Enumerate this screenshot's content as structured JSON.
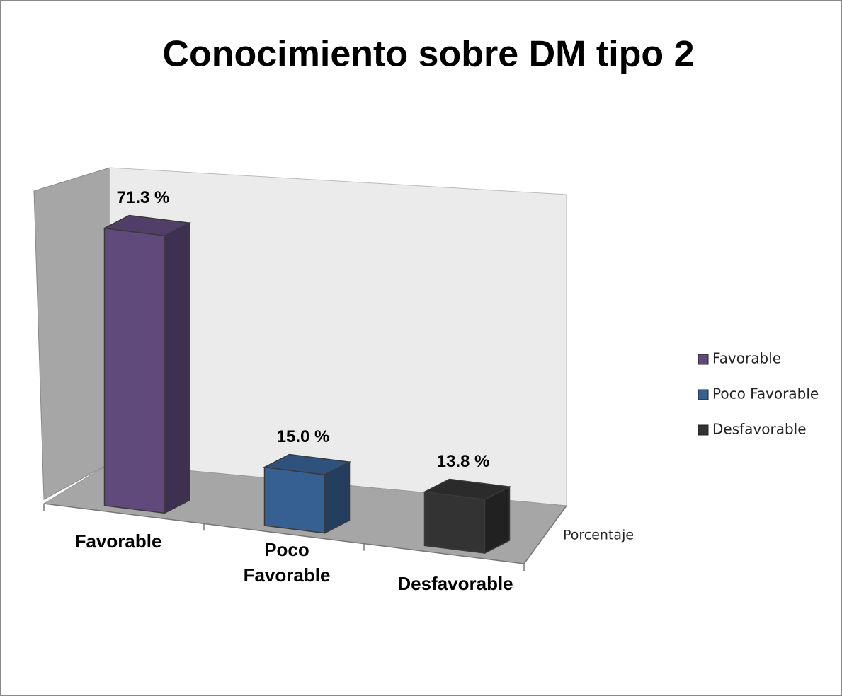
{
  "chart_data": {
    "type": "bar3d",
    "title": "Conocimiento sobre DM tipo 2",
    "categories": [
      "Favorable",
      "Poco Favorable",
      "Desfavorable"
    ],
    "series": [
      {
        "name": "Porcentaje",
        "values": [
          71.3,
          15.0,
          13.8
        ],
        "value_labels": [
          "71.3 %",
          "15.0 %",
          "13.8 %"
        ],
        "colors": [
          "#604a7b",
          "#376092",
          "#333333"
        ]
      }
    ],
    "ylim": [
      0,
      80
    ],
    "legend": "right"
  }
}
